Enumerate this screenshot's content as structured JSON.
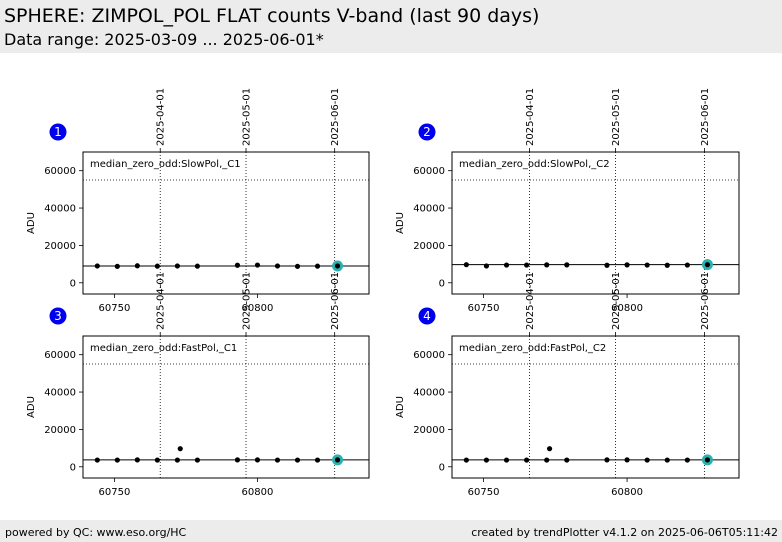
{
  "header": {
    "title": "SPHERE: ZIMPOL_POL FLAT counts V-band (last 90 days)",
    "subtitle": "Data range: 2025-03-09 ... 2025-06-01*"
  },
  "footer": {
    "left": "powered by QC: www.eso.org/HC",
    "right": "created by trendPlotter v4.1.2 on 2025-06-06T05:11:42"
  },
  "colors": {
    "background_band": "#ececec",
    "marker": "#0000ee",
    "point": "#000000",
    "latest_point_ring": "#2ab0b0"
  },
  "chart_data": [
    {
      "type": "scatter",
      "panel_number": "1",
      "label": "median_zero_odd:SlowPol,_C1",
      "ylabel": "ADU",
      "xlim": [
        60739,
        60839
      ],
      "ylim": [
        -6000,
        70000
      ],
      "xticks": [
        60750,
        60800
      ],
      "yticks": [
        0,
        20000,
        40000,
        60000
      ],
      "date_ticks": [
        {
          "label": "2025-04-01",
          "mjd": 60766
        },
        {
          "label": "2025-05-01",
          "mjd": 60796
        },
        {
          "label": "2025-06-01",
          "mjd": 60827
        }
      ],
      "reference_lines": {
        "solid": 9000,
        "dotted": 55000
      },
      "x": [
        60744,
        60751,
        60758,
        60765,
        60772,
        60779,
        60793,
        60800,
        60807,
        60814,
        60821,
        60828
      ],
      "y": [
        9000,
        8800,
        9100,
        8900,
        9000,
        8900,
        9400,
        9500,
        9000,
        8800,
        8900,
        9000
      ],
      "latest": {
        "x": 60828,
        "y": 9000
      },
      "grid": false
    },
    {
      "type": "scatter",
      "panel_number": "2",
      "label": "median_zero_odd:SlowPol,_C2",
      "ylabel": "ADU",
      "xlim": [
        60739,
        60839
      ],
      "ylim": [
        -6000,
        70000
      ],
      "xticks": [
        60750,
        60800
      ],
      "yticks": [
        0,
        20000,
        40000,
        60000
      ],
      "date_ticks": [
        {
          "label": "2025-04-01",
          "mjd": 60766
        },
        {
          "label": "2025-05-01",
          "mjd": 60796
        },
        {
          "label": "2025-06-01",
          "mjd": 60827
        }
      ],
      "reference_lines": {
        "solid": 9700,
        "dotted": 55000
      },
      "x": [
        60744,
        60751,
        60758,
        60765,
        60772,
        60779,
        60793,
        60800,
        60807,
        60814,
        60821,
        60828
      ],
      "y": [
        9700,
        9000,
        9500,
        9500,
        9600,
        9600,
        9400,
        9600,
        9500,
        9400,
        9500,
        9700
      ],
      "latest": {
        "x": 60828,
        "y": 9700
      },
      "grid": false
    },
    {
      "type": "scatter",
      "panel_number": "3",
      "label": "median_zero_odd:FastPol,_C1",
      "ylabel": "ADU",
      "xlim": [
        60739,
        60839
      ],
      "ylim": [
        -6000,
        70000
      ],
      "xticks": [
        60750,
        60800
      ],
      "yticks": [
        0,
        20000,
        40000,
        60000
      ],
      "date_ticks": [
        {
          "label": "2025-04-01",
          "mjd": 60766
        },
        {
          "label": "2025-05-01",
          "mjd": 60796
        },
        {
          "label": "2025-06-01",
          "mjd": 60827
        }
      ],
      "reference_lines": {
        "solid": 3700,
        "dotted": 55000
      },
      "x": [
        60744,
        60751,
        60758,
        60765,
        60772,
        60773,
        60779,
        60793,
        60800,
        60807,
        60814,
        60821,
        60828
      ],
      "y": [
        3600,
        3600,
        3700,
        3600,
        3600,
        9700,
        3600,
        3700,
        3700,
        3600,
        3600,
        3600,
        3700
      ],
      "latest": {
        "x": 60828,
        "y": 3700
      },
      "grid": false
    },
    {
      "type": "scatter",
      "panel_number": "4",
      "label": "median_zero_odd:FastPol,_C2",
      "ylabel": "ADU",
      "xlim": [
        60739,
        60839
      ],
      "ylim": [
        -6000,
        70000
      ],
      "xticks": [
        60750,
        60800
      ],
      "yticks": [
        0,
        20000,
        40000,
        60000
      ],
      "date_ticks": [
        {
          "label": "2025-04-01",
          "mjd": 60766
        },
        {
          "label": "2025-05-01",
          "mjd": 60796
        },
        {
          "label": "2025-06-01",
          "mjd": 60827
        }
      ],
      "reference_lines": {
        "solid": 3700,
        "dotted": 55000
      },
      "x": [
        60744,
        60751,
        60758,
        60765,
        60772,
        60773,
        60779,
        60793,
        60800,
        60807,
        60814,
        60821,
        60828
      ],
      "y": [
        3600,
        3600,
        3600,
        3600,
        3600,
        9700,
        3600,
        3700,
        3700,
        3600,
        3600,
        3600,
        3700
      ],
      "latest": {
        "x": 60828,
        "y": 3700
      },
      "grid": false
    }
  ]
}
